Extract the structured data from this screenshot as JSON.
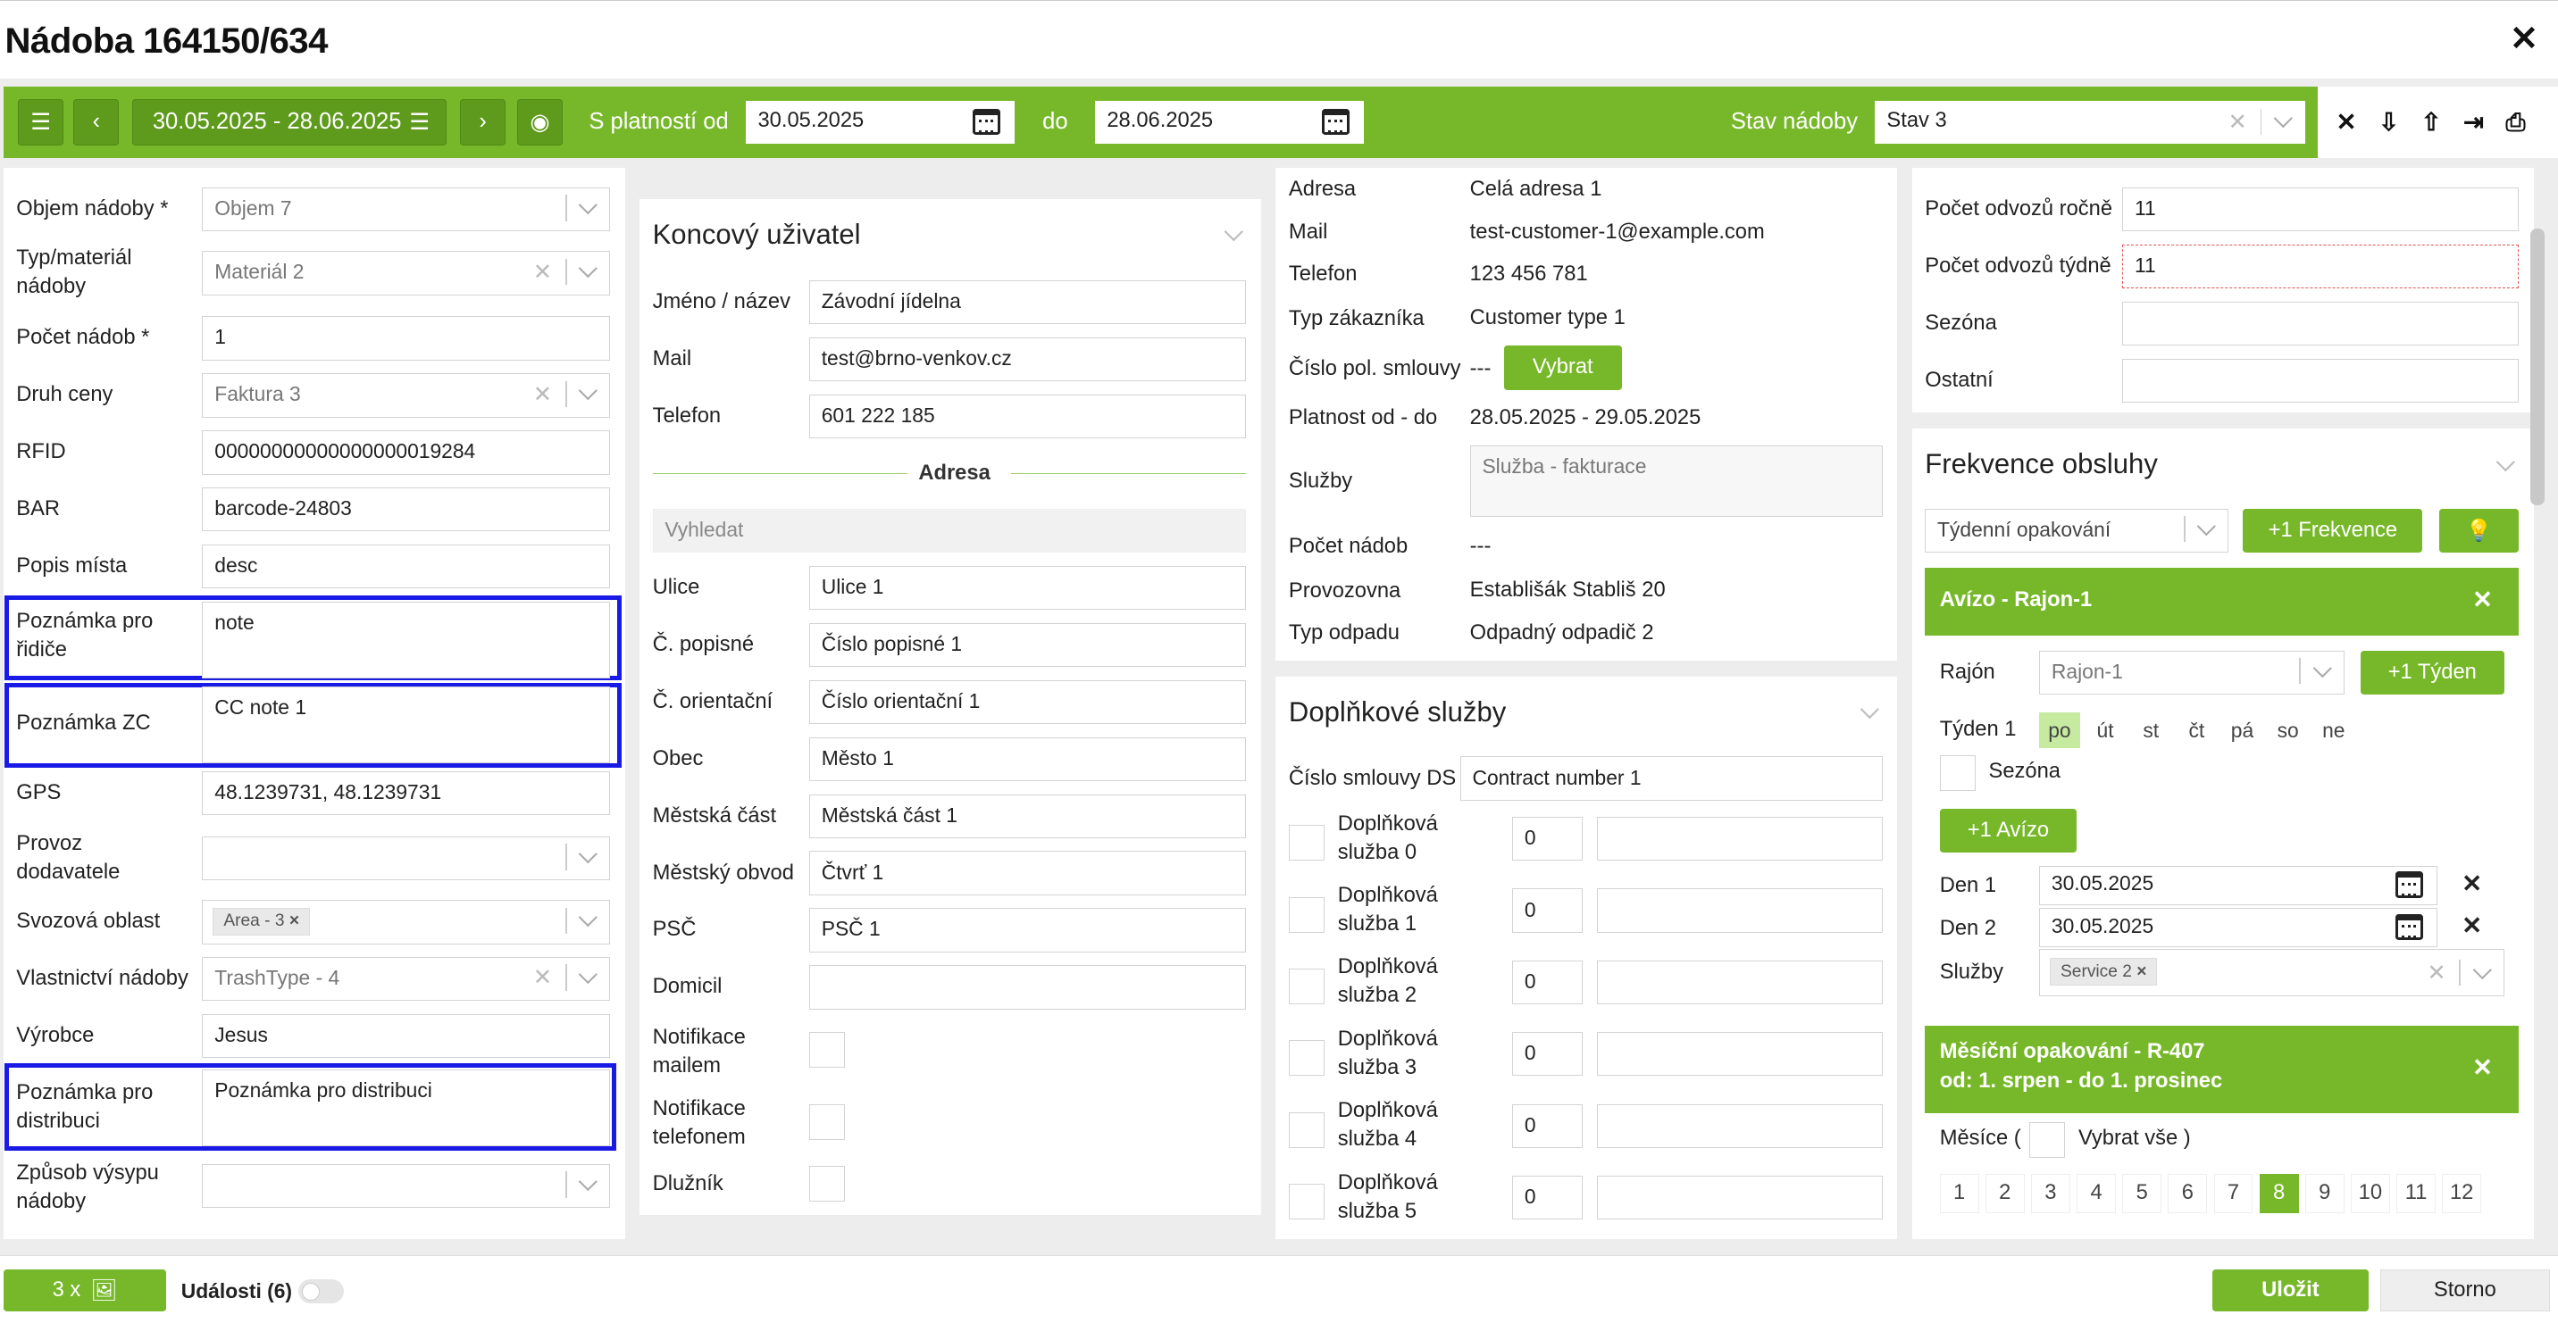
{
  "window": {
    "title": "Nádoba 164150/634",
    "close": "✕"
  },
  "toolbar": {
    "range_button": "30.05.2025 - 28.06.2025",
    "valid_from_label": "S platností od",
    "valid_from": "30.05.2025",
    "to_label": "do",
    "valid_to": "28.06.2025",
    "state_label": "Stav nádoby",
    "state_value": "Stav 3"
  },
  "left": {
    "volume_label": "Objem nádoby *",
    "volume": "Objem 7",
    "material_label": "Typ/materiál nádoby",
    "material": "Materiál 2",
    "count_label": "Počet nádob *",
    "count": "1",
    "price_label": "Druh ceny",
    "price": "Faktura 3",
    "rfid_label": "RFID",
    "rfid": "00000000000000000019284",
    "bar_label": "BAR",
    "bar": "barcode-24803",
    "place_label": "Popis místa",
    "place": "desc",
    "driver_note_label": "Poznámka pro řidiče",
    "driver_note": "note",
    "zc_note_label": "Poznámka ZC",
    "zc_note": "CC note 1",
    "gps_label": "GPS",
    "gps": "48.1239731, 48.1239731",
    "supplier_label": "Provoz dodavatele",
    "supplier": "",
    "area_label": "Svozová oblast",
    "area_tag": "Area - 3",
    "owner_label": "Vlastnictví nádoby",
    "owner": "TrashType - 4",
    "maker_label": "Výrobce",
    "maker": "Jesus",
    "distrib_note_label": "Poznámka pro distribuci",
    "distrib_note": "Poznámka pro distribuci",
    "issue_label": "Způsob výsypu nádoby",
    "issue": ""
  },
  "enduser": {
    "title": "Koncový uživatel",
    "name_label": "Jméno / název",
    "name": "Závodní jídelna",
    "mail_label": "Mail",
    "mail": "test@brno-venkov.cz",
    "phone_label": "Telefon",
    "phone": "601 222 185",
    "address_label": "Adresa",
    "search_placeholder": "Vyhledat",
    "street_label": "Ulice",
    "street": "Ulice 1",
    "cp_label": "Č. popisné",
    "cp": "Číslo popisné 1",
    "co_label": "Č. orientační",
    "co": "Číslo orientační 1",
    "city_label": "Obec",
    "city": "Město 1",
    "part_label": "Městská část",
    "part": "Městská část 1",
    "district_label": "Městský obvod",
    "district": "Čtvrť 1",
    "zip_label": "PSČ",
    "zip": "PSČ 1",
    "domicile_label": "Domicil",
    "domicile": "",
    "notif_mail_label": "Notifikace mailem",
    "notif_phone_label": "Notifikace telefonem",
    "debtor_label": "Dlužník"
  },
  "customer": {
    "address_label": "Adresa",
    "address": "Celá adresa 1",
    "mail_label": "Mail",
    "mail": "test-customer-1@example.com",
    "phone_label": "Telefon",
    "phone": "123 456 781",
    "type_label": "Typ zákazníka",
    "type": "Customer type 1",
    "contract_label": "Číslo pol. smlouvy",
    "contract": "---",
    "choose": "Vybrat",
    "validity_label": "Platnost od - do",
    "validity": "28.05.2025 - 29.05.2025",
    "services_label": "Služby",
    "services": "Služba - fakturace",
    "count_label": "Počet nádob",
    "count": "---",
    "facility_label": "Provozovna",
    "facility": "Establišák Stabliš 20",
    "waste_label": "Typ odpadu",
    "waste": "Odpadný odpadič 2"
  },
  "extra": {
    "title": "Doplňkové služby",
    "contract_label": "Číslo smlouvy DS",
    "contract": "Contract number 1",
    "items": [
      {
        "label": "Doplňková služba 0",
        "qty": "0"
      },
      {
        "label": "Doplňková služba 1",
        "qty": "0"
      },
      {
        "label": "Doplňková služba 2",
        "qty": "0"
      },
      {
        "label": "Doplňková služba 3",
        "qty": "0"
      },
      {
        "label": "Doplňková služba 4",
        "qty": "0"
      },
      {
        "label": "Doplňková služba 5",
        "qty": "0"
      }
    ]
  },
  "counts": {
    "yearly_label": "Počet odvozů ročně",
    "yearly": "11",
    "weekly_label": "Počet odvozů týdně",
    "weekly": "11",
    "season_label": "Sezóna",
    "season": "",
    "other_label": "Ostatní",
    "other": ""
  },
  "freq": {
    "title": "Frekvence obsluhy",
    "repeat": "Týdenní opakování",
    "add_freq": "+1 Frekvence",
    "avizo_title": "Avízo - Rajon-1",
    "rajon_label": "Rajón",
    "rajon": "Rajon-1",
    "add_week": "+1 Týden",
    "week_label": "Týden 1",
    "days": [
      "po",
      "út",
      "st",
      "čt",
      "pá",
      "so",
      "ne"
    ],
    "season_label": "Sezóna",
    "add_avizo": "+1 Avízo",
    "day1_label": "Den 1",
    "day1": "30.05.2025",
    "day2_label": "Den 2",
    "day2": "30.05.2025",
    "services_label": "Služby",
    "service_tag": "Service 2",
    "monthly_title": "Měsíční opakování - R-407",
    "monthly_sub": "od: 1. srpen - do 1. prosinec",
    "months_label": "Měsíce (",
    "select_all": "Vybrat vše )",
    "months": [
      "1",
      "2",
      "3",
      "4",
      "5",
      "6",
      "7",
      "8",
      "9",
      "10",
      "11",
      "12"
    ]
  },
  "footer": {
    "photos": "3 x",
    "events": "Události (6)",
    "save": "Uložit",
    "cancel": "Storno"
  },
  "colors": {
    "accent": "#77b82a",
    "highlight": "#1a1ae6"
  }
}
